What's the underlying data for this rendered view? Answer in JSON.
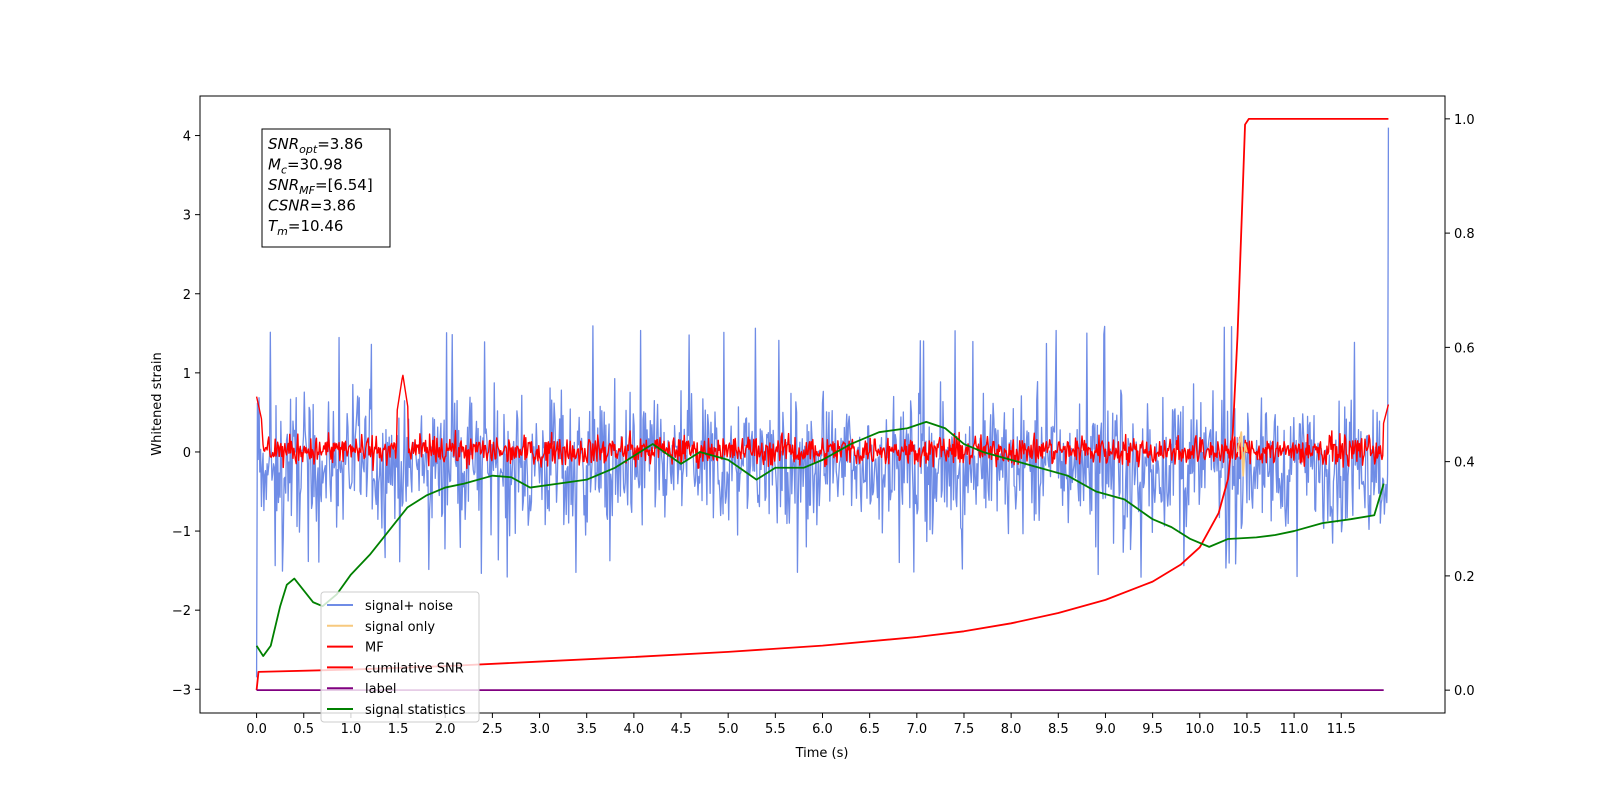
{
  "chart_data": {
    "type": "line",
    "title": "",
    "xlabel": "Time (s)",
    "ylabel": "Whitened strain",
    "xlim": [
      -0.6,
      12.6
    ],
    "ylim": [
      -3.3,
      4.5
    ],
    "y2lim": [
      -0.04,
      1.04
    ],
    "x_ticks": [
      0.0,
      0.5,
      1.0,
      1.5,
      2.0,
      2.5,
      3.0,
      3.5,
      4.0,
      4.5,
      5.0,
      5.5,
      6.0,
      6.5,
      7.0,
      7.5,
      8.0,
      8.5,
      9.0,
      9.5,
      10.0,
      10.5,
      11.0,
      11.5
    ],
    "x_tick_labels": [
      "0.0",
      "0.5",
      "1.0",
      "1.5",
      "2.0",
      "2.5",
      "3.0",
      "3.5",
      "4.0",
      "4.5",
      "5.0",
      "5.5",
      "6.0",
      "6.5",
      "7.0",
      "7.5",
      "8.0",
      "8.5",
      "9.0",
      "9.5",
      "10.0",
      "10.5",
      "11.0",
      "11.5"
    ],
    "y_ticks": [
      -3,
      -2,
      -1,
      0,
      1,
      2,
      3,
      4
    ],
    "y_tick_labels": [
      "−3",
      "−2",
      "−1",
      "0",
      "1",
      "2",
      "3",
      "4"
    ],
    "y2_ticks": [
      0.0,
      0.2,
      0.4,
      0.6,
      0.8,
      1.0
    ],
    "y2_tick_labels": [
      "0.0",
      "0.2",
      "0.4",
      "0.6",
      "0.8",
      "1.0"
    ],
    "grid": false,
    "legend_placement": "lower-left",
    "legend": [
      {
        "name": "signal+ noise",
        "color": "#6f8ce6"
      },
      {
        "name": "signal only",
        "color": "#f7c97e"
      },
      {
        "name": "MF",
        "color": "#ff0000"
      },
      {
        "name": "cumilative SNR",
        "color": "#ff0000"
      },
      {
        "name": "label",
        "color": "#800080"
      },
      {
        "name": "signal statistics",
        "color": "#008000"
      }
    ],
    "stats_box": [
      {
        "sym": "SNR",
        "sub": "opt",
        "val": "=3.86"
      },
      {
        "sym": "M",
        "sub": "c",
        "val": "=30.98"
      },
      {
        "sym": "SNR",
        "sub": "MF",
        "val": "=[6.54]"
      },
      {
        "sym": "CSNR",
        "sub": "",
        "val": "=3.86"
      },
      {
        "sym": "T",
        "sub": "m",
        "val": "=10.46"
      }
    ],
    "series": [
      {
        "name": "signal+ noise",
        "axis": "left",
        "noise": true,
        "x_range": [
          0.0,
          12.0
        ],
        "center": -0.15,
        "band": [
          -1.3,
          1.2
        ],
        "extremes": [
          -1.6,
          1.6
        ],
        "start_value": -2.85,
        "end_value": 4.1
      },
      {
        "name": "MF",
        "axis": "left",
        "noise": true,
        "x_range": [
          0.0,
          12.0
        ],
        "center": 0.02,
        "band": [
          -0.25,
          0.3
        ],
        "peaks": [
          {
            "x": 0.0,
            "y": 0.7
          },
          {
            "x": 1.55,
            "y": 0.98
          },
          {
            "x": 12.0,
            "y": 0.6
          }
        ]
      },
      {
        "name": "signal only",
        "axis": "left",
        "points": [
          [
            10.4,
            0.0
          ],
          [
            10.44,
            0.25
          ],
          [
            10.46,
            -0.3
          ],
          [
            10.48,
            0.1
          ],
          [
            10.5,
            0.0
          ]
        ]
      },
      {
        "name": "cumilative SNR",
        "axis": "right",
        "points": [
          [
            0.0,
            0.0
          ],
          [
            0.02,
            0.032
          ],
          [
            1.0,
            0.036
          ],
          [
            2.0,
            0.042
          ],
          [
            3.0,
            0.05
          ],
          [
            4.0,
            0.058
          ],
          [
            5.0,
            0.067
          ],
          [
            6.0,
            0.078
          ],
          [
            7.0,
            0.093
          ],
          [
            7.5,
            0.103
          ],
          [
            8.0,
            0.117
          ],
          [
            8.5,
            0.135
          ],
          [
            9.0,
            0.158
          ],
          [
            9.5,
            0.19
          ],
          [
            9.8,
            0.22
          ],
          [
            10.0,
            0.25
          ],
          [
            10.2,
            0.31
          ],
          [
            10.3,
            0.37
          ],
          [
            10.35,
            0.45
          ],
          [
            10.4,
            0.62
          ],
          [
            10.45,
            0.85
          ],
          [
            10.48,
            0.99
          ],
          [
            10.52,
            1.0
          ],
          [
            12.0,
            1.0
          ]
        ]
      },
      {
        "name": "label",
        "axis": "right",
        "points": [
          [
            0.0,
            0.0
          ],
          [
            11.95,
            0.0
          ]
        ]
      },
      {
        "name": "signal statistics",
        "axis": "left",
        "points": [
          [
            0.0,
            -2.45
          ],
          [
            0.07,
            -2.58
          ],
          [
            0.15,
            -2.45
          ],
          [
            0.25,
            -1.95
          ],
          [
            0.32,
            -1.68
          ],
          [
            0.4,
            -1.6
          ],
          [
            0.5,
            -1.75
          ],
          [
            0.6,
            -1.9
          ],
          [
            0.7,
            -1.95
          ],
          [
            0.85,
            -1.8
          ],
          [
            1.0,
            -1.55
          ],
          [
            1.2,
            -1.3
          ],
          [
            1.4,
            -1.0
          ],
          [
            1.6,
            -0.7
          ],
          [
            1.8,
            -0.55
          ],
          [
            2.0,
            -0.45
          ],
          [
            2.2,
            -0.4
          ],
          [
            2.5,
            -0.3
          ],
          [
            2.7,
            -0.32
          ],
          [
            2.9,
            -0.45
          ],
          [
            3.2,
            -0.4
          ],
          [
            3.5,
            -0.35
          ],
          [
            3.8,
            -0.2
          ],
          [
            4.2,
            0.1
          ],
          [
            4.5,
            -0.15
          ],
          [
            4.7,
            0.0
          ],
          [
            5.0,
            -0.1
          ],
          [
            5.3,
            -0.35
          ],
          [
            5.5,
            -0.2
          ],
          [
            5.8,
            -0.2
          ],
          [
            6.0,
            -0.1
          ],
          [
            6.3,
            0.1
          ],
          [
            6.6,
            0.25
          ],
          [
            6.9,
            0.3
          ],
          [
            7.1,
            0.38
          ],
          [
            7.3,
            0.3
          ],
          [
            7.5,
            0.1
          ],
          [
            7.7,
            0.0
          ],
          [
            8.0,
            -0.1
          ],
          [
            8.3,
            -0.2
          ],
          [
            8.6,
            -0.3
          ],
          [
            8.9,
            -0.5
          ],
          [
            9.2,
            -0.6
          ],
          [
            9.5,
            -0.85
          ],
          [
            9.7,
            -0.95
          ],
          [
            9.9,
            -1.1
          ],
          [
            10.1,
            -1.2
          ],
          [
            10.3,
            -1.1
          ],
          [
            10.6,
            -1.08
          ],
          [
            10.8,
            -1.05
          ],
          [
            11.0,
            -1.0
          ],
          [
            11.3,
            -0.9
          ],
          [
            11.6,
            -0.85
          ],
          [
            11.85,
            -0.8
          ],
          [
            11.95,
            -0.4
          ]
        ]
      }
    ]
  }
}
